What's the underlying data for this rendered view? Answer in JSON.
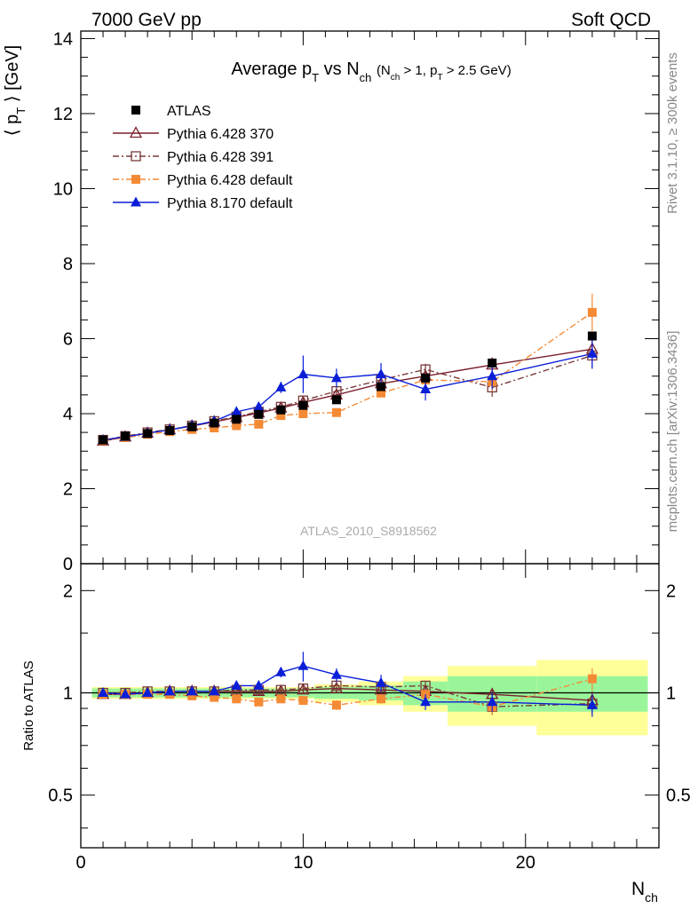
{
  "header": {
    "left": "7000 GeV pp",
    "right": "Soft QCD"
  },
  "side_labels": {
    "rivet": "Rivet 3.1.10, ≥ 300k events",
    "mcplots": "mcplots.cern.ch [arXiv:1306.3436]"
  },
  "watermark": "ATLAS_2010_S8918562",
  "chart_data": [
    {
      "type": "scatter",
      "title": "Average p_T vs N_ch (N_ch > 1, p_T > 2.5 GeV)",
      "xlabel": "N_ch",
      "ylabel": "⟨ p_T ⟩ [GeV]",
      "xlim": [
        0,
        26
      ],
      "ylim": [
        0,
        14.2
      ],
      "xticks": [
        0,
        10,
        20
      ],
      "yticks": [
        0,
        2,
        4,
        6,
        8,
        10,
        12,
        14
      ],
      "legend_position": "top-left",
      "series": [
        {
          "name": "ATLAS",
          "color": "#000000",
          "marker": "square-filled",
          "line": "none",
          "x": [
            1,
            2,
            3,
            4,
            5,
            6,
            7,
            8,
            9,
            10,
            11.5,
            13.5,
            15.5,
            18.5,
            23
          ],
          "y": [
            3.3,
            3.4,
            3.47,
            3.55,
            3.65,
            3.75,
            3.85,
            3.98,
            4.1,
            4.22,
            4.37,
            4.72,
            4.95,
            5.35,
            6.07
          ]
        },
        {
          "name": "Pythia 6.428 370",
          "color": "#7a1e2b",
          "marker": "triangle-open",
          "line": "solid",
          "x": [
            1,
            2,
            3,
            4,
            5,
            6,
            7,
            8,
            9,
            10,
            11.5,
            13.5,
            15.5,
            18.5,
            23
          ],
          "y": [
            3.27,
            3.38,
            3.48,
            3.57,
            3.67,
            3.78,
            3.9,
            4.02,
            4.15,
            4.3,
            4.5,
            4.8,
            5.0,
            5.3,
            5.72
          ],
          "err": [
            0.05,
            0.05,
            0.05,
            0.05,
            0.05,
            0.05,
            0.06,
            0.07,
            0.07,
            0.08,
            0.1,
            0.12,
            0.15,
            0.2,
            0.3
          ]
        },
        {
          "name": "Pythia 6.428 391",
          "color": "#7a3a3a",
          "marker": "square-open",
          "line": "dashdot",
          "x": [
            1,
            2,
            3,
            4,
            5,
            6,
            7,
            8,
            9,
            10,
            11.5,
            13.5,
            15.5,
            18.5,
            23
          ],
          "y": [
            3.3,
            3.4,
            3.5,
            3.58,
            3.68,
            3.8,
            3.92,
            4.05,
            4.18,
            4.35,
            4.6,
            4.9,
            5.18,
            4.7,
            5.55
          ],
          "err": [
            0.05,
            0.05,
            0.05,
            0.05,
            0.05,
            0.05,
            0.06,
            0.07,
            0.07,
            0.08,
            0.1,
            0.12,
            0.15,
            0.25,
            0.35
          ]
        },
        {
          "name": "Pythia 6.428 default",
          "color": "#f58a35",
          "marker": "square-filled",
          "line": "dashdot",
          "x": [
            1,
            2,
            3,
            4,
            5,
            6,
            7,
            8,
            9,
            10,
            11.5,
            13.5,
            15.5,
            18.5,
            23
          ],
          "y": [
            3.28,
            3.36,
            3.45,
            3.52,
            3.58,
            3.62,
            3.68,
            3.72,
            3.95,
            4.0,
            4.03,
            4.55,
            4.9,
            4.85,
            6.7
          ],
          "err": [
            0.05,
            0.05,
            0.05,
            0.05,
            0.05,
            0.05,
            0.06,
            0.07,
            0.07,
            0.08,
            0.1,
            0.12,
            0.15,
            0.25,
            0.5
          ]
        },
        {
          "name": "Pythia 8.170 default",
          "color": "#0a1ed8",
          "marker": "triangle-filled",
          "line": "solid",
          "x": [
            1,
            2,
            3,
            4,
            5,
            6,
            7,
            8,
            9,
            10,
            11.5,
            13.5,
            15.5,
            18.5,
            23
          ],
          "y": [
            3.3,
            3.38,
            3.48,
            3.57,
            3.68,
            3.8,
            4.05,
            4.18,
            4.7,
            5.05,
            4.95,
            5.05,
            4.65,
            5.0,
            5.6
          ],
          "err": [
            0.05,
            0.05,
            0.05,
            0.05,
            0.05,
            0.05,
            0.06,
            0.08,
            0.15,
            0.5,
            0.25,
            0.3,
            0.3,
            0.35,
            0.4
          ]
        }
      ]
    },
    {
      "type": "scatter",
      "xlabel": "N_ch",
      "ylabel": "Ratio to ATLAS",
      "ylim": [
        0.35,
        2.4
      ],
      "y_scale": "log",
      "yticks": [
        0.5,
        1,
        2
      ],
      "reference_line": 1,
      "uncertainty_bands": {
        "x_edges": [
          0.5,
          1.5,
          2.5,
          3.5,
          4.5,
          5.5,
          6.5,
          7.5,
          8.5,
          9.5,
          10.5,
          12.5,
          14.5,
          16.5,
          20.5,
          25.5
        ],
        "inner": [
          0.03,
          0.03,
          0.03,
          0.03,
          0.03,
          0.03,
          0.03,
          0.03,
          0.03,
          0.03,
          0.04,
          0.05,
          0.08,
          0.12,
          0.12
        ],
        "outer": [
          0.04,
          0.04,
          0.04,
          0.04,
          0.04,
          0.04,
          0.04,
          0.04,
          0.04,
          0.04,
          0.06,
          0.08,
          0.12,
          0.2,
          0.25
        ],
        "inner_color": "#9af59a",
        "outer_color": "#ffff99"
      },
      "series": [
        {
          "name": "Pythia 6.428 370",
          "y": [
            0.99,
            0.99,
            1.0,
            1.01,
            1.01,
            1.01,
            1.01,
            1.01,
            1.01,
            1.02,
            1.03,
            1.02,
            1.01,
            0.99,
            0.95
          ],
          "err": [
            0.02,
            0.02,
            0.02,
            0.02,
            0.02,
            0.02,
            0.02,
            0.02,
            0.02,
            0.02,
            0.03,
            0.03,
            0.03,
            0.04,
            0.06
          ]
        },
        {
          "name": "Pythia 6.428 391",
          "y": [
            1.0,
            1.0,
            1.01,
            1.01,
            1.01,
            1.01,
            1.02,
            1.02,
            1.02,
            1.03,
            1.05,
            1.04,
            1.05,
            0.91,
            0.93
          ],
          "err": [
            0.02,
            0.02,
            0.02,
            0.02,
            0.02,
            0.02,
            0.02,
            0.02,
            0.02,
            0.02,
            0.03,
            0.03,
            0.03,
            0.05,
            0.06
          ]
        },
        {
          "name": "Pythia 6.428 default",
          "y": [
            0.99,
            0.99,
            0.99,
            0.99,
            0.98,
            0.97,
            0.96,
            0.94,
            0.96,
            0.95,
            0.92,
            0.96,
            0.99,
            0.91,
            1.1
          ],
          "err": [
            0.02,
            0.02,
            0.02,
            0.02,
            0.02,
            0.02,
            0.02,
            0.02,
            0.02,
            0.02,
            0.03,
            0.03,
            0.03,
            0.05,
            0.08
          ]
        },
        {
          "name": "Pythia 8.170 default",
          "y": [
            1.0,
            0.99,
            1.0,
            1.01,
            1.01,
            1.01,
            1.05,
            1.05,
            1.15,
            1.2,
            1.13,
            1.07,
            0.94,
            0.94,
            0.92
          ],
          "err": [
            0.02,
            0.02,
            0.02,
            0.02,
            0.02,
            0.02,
            0.02,
            0.02,
            0.04,
            0.12,
            0.05,
            0.06,
            0.05,
            0.06,
            0.07
          ]
        }
      ]
    }
  ]
}
